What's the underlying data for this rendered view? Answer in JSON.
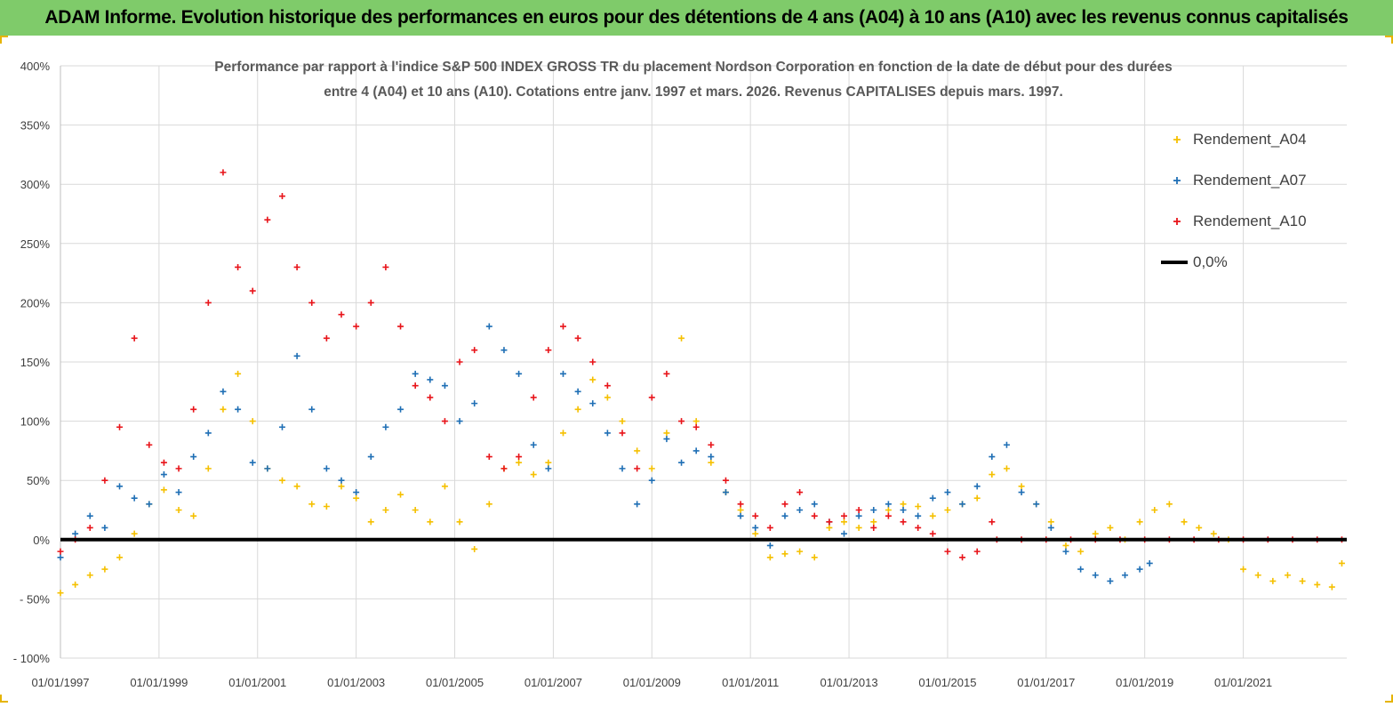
{
  "banner": {
    "title": "ADAM Informe. Evolution historique des performances en euros pour des détentions de 4 ans (A04) à 10 ans (A10) avec les revenus connus capitalisés"
  },
  "colors": {
    "banner_bg": "#7fcb6a",
    "A04": "#f5c000",
    "A07": "#1f6fb5",
    "A10": "#e8141a",
    "zero_line": "#000000"
  },
  "chart_data": {
    "type": "scatter",
    "title_line1": "Performance par rapport à l'indice S&P 500 INDEX GROSS TR  du placement Nordson Corporation en fonction de la date de début pour des durées",
    "title_line2": "entre 4 (A04) et 10 ans (A10). Cotations entre janv. 1997 et mars. 2026. Revenus CAPITALISES depuis mars. 1997.",
    "ylim": [
      -100,
      400
    ],
    "y_ticks": [
      "- 100%",
      "- 50%",
      "0%",
      "50%",
      "100%",
      "150%",
      "200%",
      "250%",
      "300%",
      "350%",
      "400%"
    ],
    "y_tick_values": [
      -100,
      -50,
      0,
      50,
      100,
      150,
      200,
      250,
      300,
      350,
      400
    ],
    "xlim": [
      1997.0,
      2023.1
    ],
    "x_ticks": [
      "01/01/1997",
      "01/01/1999",
      "01/01/2001",
      "01/01/2003",
      "01/01/2005",
      "01/01/2007",
      "01/01/2009",
      "01/01/2011",
      "01/01/2013",
      "01/01/2015",
      "01/01/2017",
      "01/01/2019",
      "01/01/2021"
    ],
    "x_tick_values": [
      1997,
      1999,
      2001,
      2003,
      2005,
      2007,
      2009,
      2011,
      2013,
      2015,
      2017,
      2019,
      2021
    ],
    "legend": {
      "position": "top-right",
      "entries": [
        "Rendement_A04",
        "Rendement_A07",
        "Rendement_A10",
        "0,0%"
      ]
    },
    "series": [
      {
        "name": "Rendement_A04",
        "x": [
          1997.0,
          1997.3,
          1997.6,
          1997.9,
          1998.2,
          1998.5,
          1998.8,
          1999.1,
          1999.4,
          1999.7,
          2000.0,
          2000.3,
          2000.6,
          2000.9,
          2001.2,
          2001.5,
          2001.8,
          2002.1,
          2002.4,
          2002.7,
          2003.0,
          2003.3,
          2003.6,
          2003.9,
          2004.2,
          2004.5,
          2004.8,
          2005.1,
          2005.4,
          2005.7,
          2006.0,
          2006.3,
          2006.6,
          2006.9,
          2007.2,
          2007.5,
          2007.8,
          2008.1,
          2008.4,
          2008.7,
          2009.0,
          2009.3,
          2009.6,
          2009.9,
          2010.2,
          2010.5,
          2010.8,
          2011.1,
          2011.4,
          2011.7,
          2012.0,
          2012.3,
          2012.6,
          2012.9,
          2013.2,
          2013.5,
          2013.8,
          2014.1,
          2014.4,
          2014.7,
          2015.0,
          2015.3,
          2015.6,
          2015.9,
          2016.2,
          2016.5,
          2016.8,
          2017.1,
          2017.4,
          2017.7,
          2018.0,
          2018.3,
          2018.6,
          2018.9,
          2019.2,
          2019.5,
          2019.8,
          2020.1,
          2020.4,
          2020.7,
          2021.0,
          2021.3,
          2021.6,
          2021.9,
          2022.2,
          2022.5,
          2022.8,
          2023.0
        ],
        "values": [
          -45,
          -38,
          -30,
          -25,
          -15,
          5,
          30,
          42,
          25,
          20,
          60,
          110,
          140,
          100,
          60,
          50,
          45,
          30,
          28,
          45,
          35,
          15,
          25,
          38,
          25,
          15,
          45,
          15,
          -8,
          30,
          60,
          65,
          55,
          65,
          90,
          110,
          135,
          120,
          100,
          75,
          60,
          90,
          170,
          100,
          65,
          40,
          25,
          5,
          -15,
          -12,
          -10,
          -15,
          10,
          15,
          10,
          15,
          25,
          30,
          28,
          20,
          25,
          30,
          35,
          55,
          60,
          45,
          30,
          15,
          -5,
          -10,
          5,
          10,
          0,
          15,
          25,
          30,
          15,
          10,
          5,
          0,
          -25,
          -30,
          -35,
          -30,
          -35,
          -38,
          -40,
          -20
        ]
      },
      {
        "name": "Rendement_A07",
        "x": [
          1997.0,
          1997.3,
          1997.6,
          1997.9,
          1998.2,
          1998.5,
          1998.8,
          1999.1,
          1999.4,
          1999.7,
          2000.0,
          2000.3,
          2000.6,
          2000.9,
          2001.2,
          2001.5,
          2001.8,
          2002.1,
          2002.4,
          2002.7,
          2003.0,
          2003.3,
          2003.6,
          2003.9,
          2004.2,
          2004.5,
          2004.8,
          2005.1,
          2005.4,
          2005.7,
          2006.0,
          2006.3,
          2006.6,
          2006.9,
          2007.2,
          2007.5,
          2007.8,
          2008.1,
          2008.4,
          2008.7,
          2009.0,
          2009.3,
          2009.6,
          2009.9,
          2010.2,
          2010.5,
          2010.8,
          2011.1,
          2011.4,
          2011.7,
          2012.0,
          2012.3,
          2012.6,
          2012.9,
          2013.2,
          2013.5,
          2013.8,
          2014.1,
          2014.4,
          2014.7,
          2015.0,
          2015.3,
          2015.6,
          2015.9,
          2016.2,
          2016.5,
          2016.8,
          2017.1,
          2017.4,
          2017.7,
          2018.0,
          2018.3,
          2018.6,
          2018.9,
          2019.1
        ],
        "values": [
          -15,
          5,
          20,
          10,
          45,
          35,
          30,
          55,
          40,
          70,
          90,
          125,
          110,
          65,
          60,
          95,
          155,
          110,
          60,
          50,
          40,
          70,
          95,
          110,
          140,
          135,
          130,
          100,
          115,
          180,
          160,
          140,
          80,
          60,
          140,
          125,
          115,
          90,
          60,
          30,
          50,
          85,
          65,
          75,
          70,
          40,
          20,
          10,
          -5,
          20,
          25,
          30,
          15,
          5,
          20,
          25,
          30,
          25,
          20,
          35,
          40,
          30,
          45,
          70,
          80,
          40,
          30,
          10,
          -10,
          -25,
          -30,
          -35,
          -30,
          -25,
          -20
        ]
      },
      {
        "name": "Rendement_A10",
        "x": [
          1997.0,
          1997.3,
          1997.6,
          1997.9,
          1998.2,
          1998.5,
          1998.8,
          1999.1,
          1999.4,
          1999.7,
          2000.0,
          2000.3,
          2000.6,
          2000.9,
          2001.2,
          2001.5,
          2001.8,
          2002.1,
          2002.4,
          2002.7,
          2003.0,
          2003.3,
          2003.6,
          2003.9,
          2004.2,
          2004.5,
          2004.8,
          2005.1,
          2005.4,
          2005.7,
          2006.0,
          2006.3,
          2006.6,
          2006.9,
          2007.2,
          2007.5,
          2007.8,
          2008.1,
          2008.4,
          2008.7,
          2009.0,
          2009.3,
          2009.6,
          2009.9,
          2010.2,
          2010.5,
          2010.8,
          2011.1,
          2011.4,
          2011.7,
          2012.0,
          2012.3,
          2012.6,
          2012.9,
          2013.2,
          2013.5,
          2013.8,
          2014.1,
          2014.4,
          2014.7,
          2015.0,
          2015.3,
          2015.6,
          2015.9,
          2016.0,
          2016.5,
          2017.0,
          2017.5,
          2018.0,
          2018.5,
          2019.0,
          2019.5,
          2020.0,
          2020.5,
          2021.0,
          2021.5,
          2022.0,
          2022.5,
          2023.0
        ],
        "values": [
          -10,
          0,
          10,
          50,
          95,
          170,
          80,
          65,
          60,
          110,
          200,
          310,
          230,
          210,
          270,
          290,
          230,
          200,
          170,
          190,
          180,
          200,
          230,
          180,
          130,
          120,
          100,
          150,
          160,
          70,
          60,
          70,
          120,
          160,
          180,
          170,
          150,
          130,
          90,
          60,
          120,
          140,
          100,
          95,
          80,
          50,
          30,
          20,
          10,
          30,
          40,
          20,
          15,
          20,
          25,
          10,
          20,
          15,
          10,
          5,
          -10,
          -15,
          -10,
          15,
          0,
          0,
          0,
          0,
          0,
          0,
          0,
          0,
          0,
          0,
          0,
          0,
          0,
          0,
          0
        ]
      }
    ]
  }
}
